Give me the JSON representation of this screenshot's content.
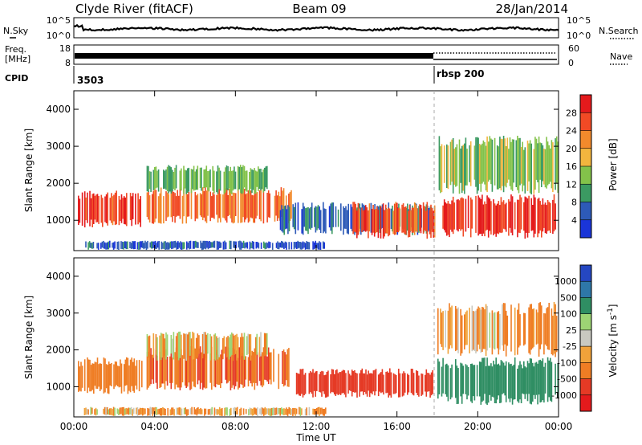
{
  "header": {
    "station": "Clyde River (fitACF)",
    "beam": "Beam 09",
    "date": "28/Jan/2014"
  },
  "noise_panel": {
    "left_label": "N.Sky",
    "right_label": "N.Search",
    "left_ticks": [
      "10^5",
      "10^0"
    ],
    "right_ticks": [
      "10^5",
      "10^0"
    ]
  },
  "freq_panel": {
    "left_label_1": "Freq.",
    "left_label_2": "[MHz]",
    "right_label": "Nave",
    "left_ticks": [
      "18",
      "8"
    ],
    "right_ticks": [
      "60",
      "0"
    ]
  },
  "cpid_panel": {
    "label": "CPID",
    "segments": [
      {
        "start_hour": 0,
        "text": "3503"
      },
      {
        "start_hour": 18,
        "text": "rbsp 200"
      }
    ]
  },
  "time_axis": {
    "label": "Time UT",
    "ticks": [
      "00:00",
      "04:00",
      "08:00",
      "12:00",
      "16:00",
      "20:00",
      "00:00"
    ]
  },
  "range_axis": {
    "label": "Slant Range [km]",
    "ticks": [
      "1000",
      "2000",
      "3000",
      "4000"
    ]
  },
  "power_scale": {
    "label": "Power [dB]",
    "ticks": [
      "4",
      "8",
      "12",
      "16",
      "20",
      "24",
      "28"
    ],
    "colors": [
      "#1a35d8",
      "#2d5ab7",
      "#3b9a62",
      "#83c24a",
      "#f3b53e",
      "#f28a2c",
      "#f14a25",
      "#e41a1c"
    ]
  },
  "velocity_scale": {
    "label": "Velocity [m s^-1]",
    "label_main": "Velocity",
    "label_unit_open": "[m s",
    "label_sup": "-1",
    "label_unit_close": "]",
    "ticks": [
      "1000",
      "500",
      "100",
      "25",
      "-25",
      "-100",
      "-500",
      "-1000"
    ],
    "colors": [
      "#2547c2",
      "#2e77a8",
      "#2f8e63",
      "#9dd474",
      "#c9c9c0",
      "#f0a23a",
      "#ef7d24",
      "#e53a25",
      "#e41a1c"
    ]
  },
  "chart_data": [
    {
      "type": "heatmap",
      "title": "Power",
      "xlabel": "Time UT",
      "ylabel": "Slant Range [km]",
      "xlim": [
        0,
        24
      ],
      "ylim": [
        180,
        4500
      ],
      "colorbar_label": "Power [dB]",
      "colorbar_range": [
        0,
        32
      ],
      "regions": [
        {
          "t0": 0.2,
          "t1": 3.4,
          "r0": 800,
          "r1": 1800,
          "value": 27
        },
        {
          "t0": 3.6,
          "t1": 10.8,
          "r0": 900,
          "r1": 1900,
          "value": 24
        },
        {
          "t0": 3.6,
          "t1": 9.6,
          "r0": 1700,
          "r1": 2500,
          "value": 12
        },
        {
          "t0": 10.2,
          "t1": 17.8,
          "r0": 600,
          "r1": 1500,
          "value": 7
        },
        {
          "t0": 13.8,
          "t1": 17.9,
          "r0": 500,
          "r1": 1500,
          "value": 26
        },
        {
          "t0": 18.0,
          "t1": 24.0,
          "r0": 500,
          "r1": 1700,
          "value": 28
        },
        {
          "t0": 18.0,
          "t1": 24.0,
          "r0": 1700,
          "r1": 3300,
          "value": 14
        },
        {
          "t0": 0.5,
          "t1": 12.5,
          "r0": 200,
          "r1": 450,
          "value": 5
        }
      ]
    },
    {
      "type": "heatmap",
      "title": "Velocity",
      "xlabel": "Time UT",
      "ylabel": "Slant Range [km]",
      "xlim": [
        0,
        24
      ],
      "ylim": [
        180,
        4500
      ],
      "colorbar_label": "Velocity [m s^-1]",
      "colorbar_range": [
        -1000,
        1000
      ],
      "regions": [
        {
          "t0": 0.2,
          "t1": 3.4,
          "r0": 800,
          "r1": 1800,
          "value": -300
        },
        {
          "t0": 3.6,
          "t1": 10.8,
          "r0": 900,
          "r1": 2100,
          "value": -450
        },
        {
          "t0": 3.6,
          "t1": 9.6,
          "r0": 1700,
          "r1": 2500,
          "value": -60
        },
        {
          "t0": 11.0,
          "t1": 17.8,
          "r0": 700,
          "r1": 1500,
          "value": -800
        },
        {
          "t0": 18.0,
          "t1": 24.0,
          "r0": 500,
          "r1": 1800,
          "value": 300
        },
        {
          "t0": 18.0,
          "t1": 24.0,
          "r0": 1800,
          "r1": 3300,
          "value": -120
        },
        {
          "t0": 0.5,
          "t1": 12.5,
          "r0": 200,
          "r1": 450,
          "value": -90
        }
      ]
    }
  ]
}
